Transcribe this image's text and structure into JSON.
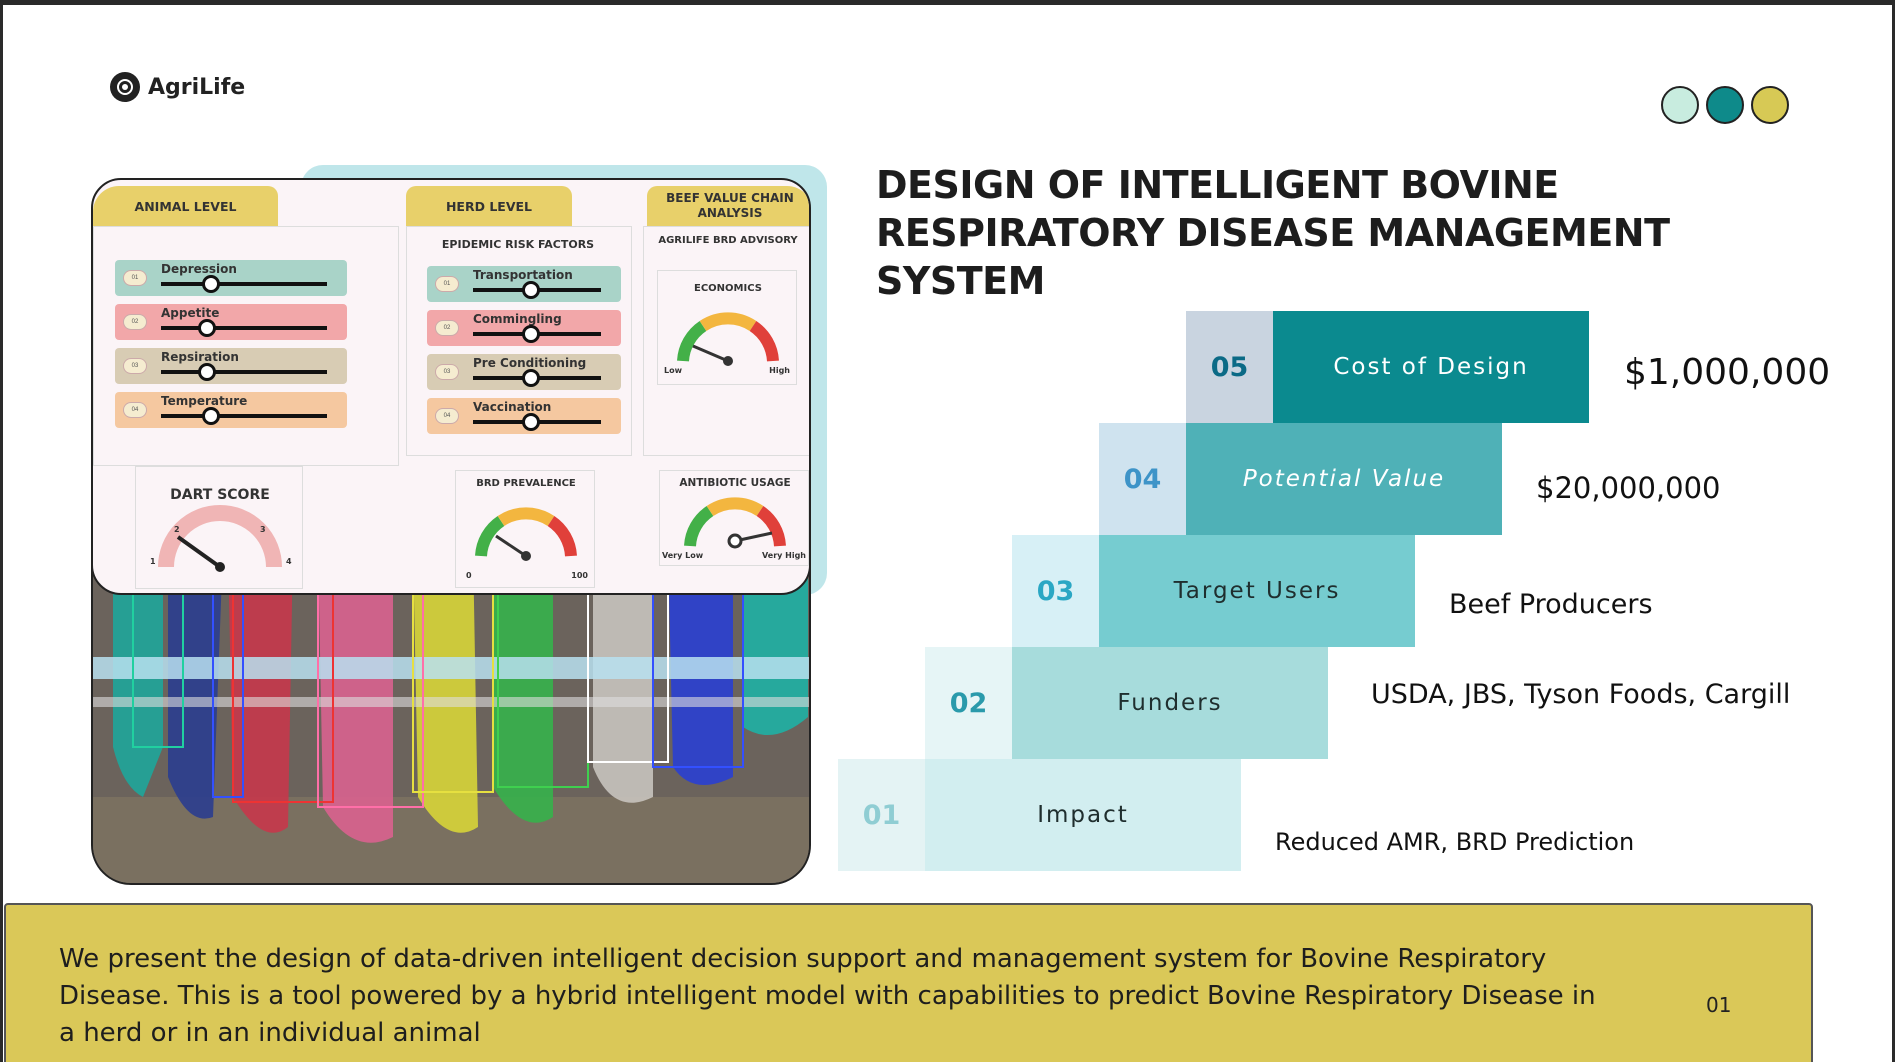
{
  "logo": {
    "name": "AgriLife"
  },
  "dots": [
    {
      "color": "#c8ecdf"
    },
    {
      "color": "#0e8a8a"
    },
    {
      "color": "#d7c955"
    }
  ],
  "title": "DESIGN OF INTELLIGENT BOVINE RESPIRATORY DISEASE MANAGEMENT SYSTEM",
  "dashboard": {
    "tabs": {
      "animal": "ANIMAL LEVEL",
      "herd": "HERD LEVEL",
      "beef": "BEEF VALUE CHAIN ANALYSIS"
    },
    "epidemic_title": "EPIDEMIC RISK FACTORS",
    "advisory_title": "AGRILIFE BRD ADVISORY",
    "economics_title": "ECONOMICS",
    "economics_low": "Low",
    "economics_high": "High",
    "animal_sliders": [
      {
        "label": "Depression",
        "num": "01",
        "color": "#a9d3c8",
        "value": 0.3
      },
      {
        "label": "Appetite",
        "num": "02",
        "color": "#f2a7a9",
        "value": 0.28
      },
      {
        "label": "Repsiration",
        "num": "03",
        "color": "#d8ccb4",
        "value": 0.28
      },
      {
        "label": "Temperature",
        "num": "04",
        "color": "#f5c8a0",
        "value": 0.3
      }
    ],
    "herd_sliders": [
      {
        "label": "Transportation",
        "num": "01",
        "color": "#a9d3c8",
        "value": 0.45
      },
      {
        "label": "Commingling",
        "num": "02",
        "color": "#f2a7a9",
        "value": 0.45
      },
      {
        "label": "Pre Conditioning",
        "num": "03",
        "color": "#d8ccb4",
        "value": 0.45
      },
      {
        "label": "Vaccination",
        "num": "04",
        "color": "#f5c8a0",
        "value": 0.45
      }
    ],
    "dart": {
      "title": "DART SCORE",
      "t1": "1",
      "t2": "2",
      "t3": "3",
      "t4": "4"
    },
    "brd": {
      "title": "BRD PREVALENCE",
      "min": "0",
      "max": "100"
    },
    "antibiotic": {
      "title": "ANTIBIOTIC USAGE",
      "min": "Very Low",
      "max": "Very High"
    }
  },
  "steps": [
    {
      "num": "05",
      "label": "Cost of Design",
      "value": "$1,000,000"
    },
    {
      "num": "04",
      "label": "Potential Value",
      "value": "$20,000,000"
    },
    {
      "num": "03",
      "label": "Target Users",
      "value": "Beef Producers"
    },
    {
      "num": "02",
      "label": "Funders",
      "value": "USDA, JBS, Tyson Foods, Cargill"
    },
    {
      "num": "01",
      "label": "Impact",
      "value": "Reduced AMR, BRD Prediction"
    }
  ],
  "footer": {
    "text": "We present the design of data-driven intelligent decision support and management system for Bovine Respiratory Disease. This is a tool powered by a hybrid intelligent model with capabilities to predict Bovine Respiratory Disease in a herd or in an individual animal",
    "page": "01"
  }
}
